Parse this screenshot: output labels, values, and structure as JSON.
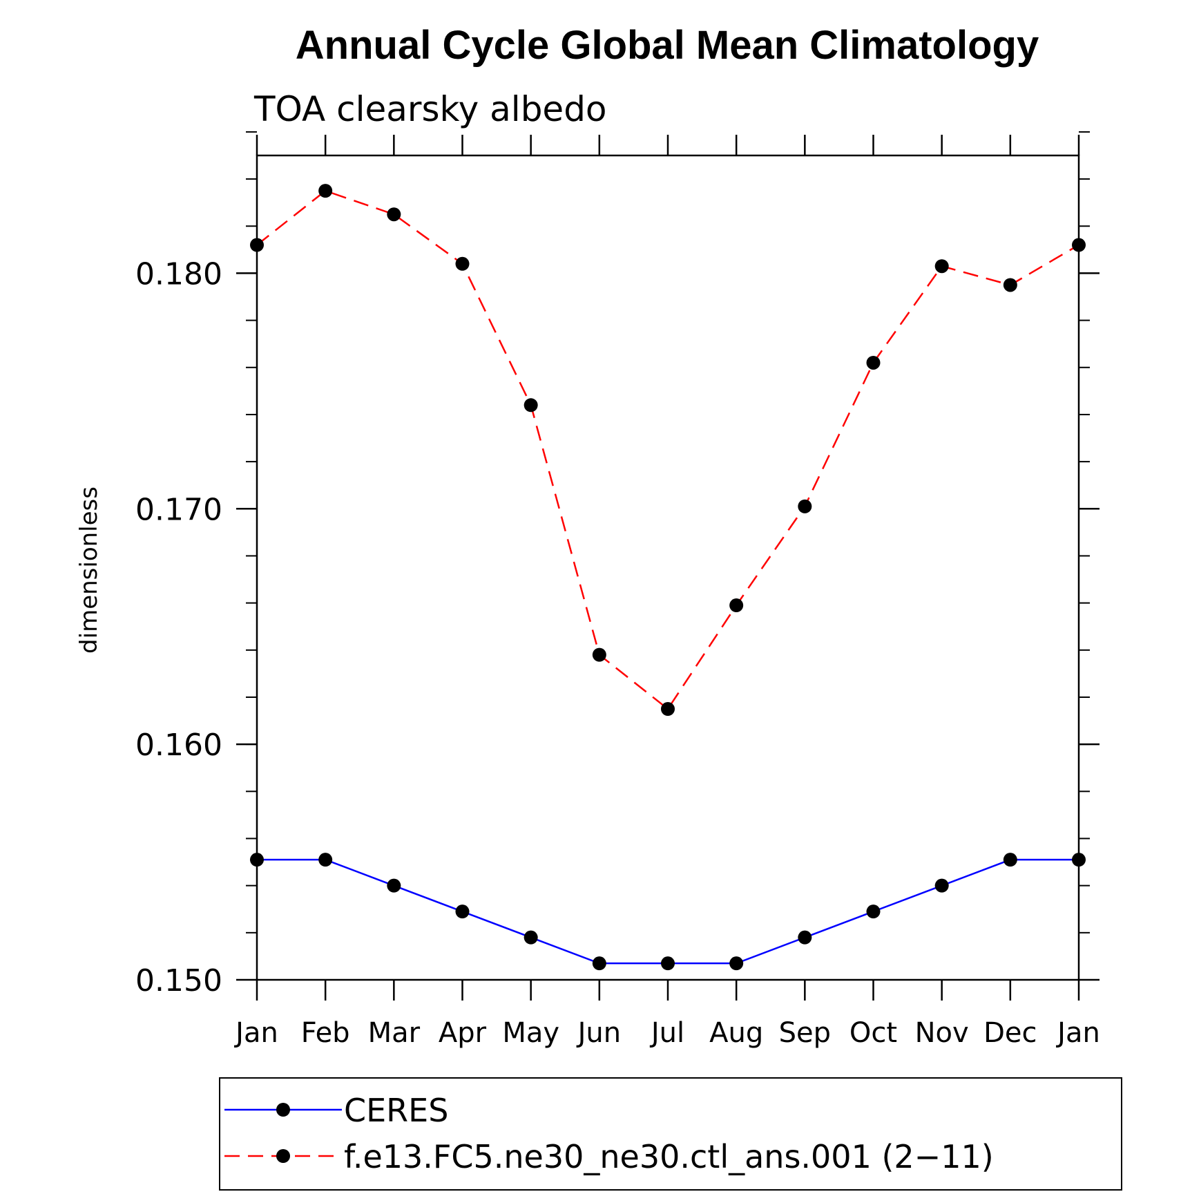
{
  "chart_data": {
    "type": "line",
    "title": "Annual Cycle Global Mean Climatology",
    "subtitle": "TOA clearsky albedo",
    "xlabel": "",
    "ylabel": "dimensionless",
    "categories": [
      "Jan",
      "Feb",
      "Mar",
      "Apr",
      "May",
      "Jun",
      "Jul",
      "Aug",
      "Sep",
      "Oct",
      "Nov",
      "Dec",
      "Jan"
    ],
    "ylim": [
      0.15,
      0.185
    ],
    "yticks": [
      0.15,
      0.16,
      0.17,
      0.18
    ],
    "ytick_labels": [
      "0.150",
      "0.160",
      "0.170",
      "0.180"
    ],
    "yminor_step": 0.002,
    "grid": false,
    "legend_position": "bottom",
    "series": [
      {
        "name": "CERES",
        "color": "#0000ff",
        "dash": "solid",
        "marker": "filled-circle",
        "values": [
          0.1551,
          0.1551,
          0.154,
          0.1529,
          0.1518,
          0.1507,
          0.1507,
          0.1507,
          0.1518,
          0.1529,
          0.154,
          0.1551,
          0.1551
        ]
      },
      {
        "name": "f.e13.FC5.ne30_ne30.ctl_ans.001 (2−11)",
        "color": "#ff0000",
        "dash": "dashed",
        "marker": "filled-circle",
        "values": [
          0.1812,
          0.1835,
          0.1825,
          0.1804,
          0.1744,
          0.1638,
          0.1615,
          0.1659,
          0.1701,
          0.1762,
          0.1803,
          0.1795,
          0.1812
        ]
      }
    ]
  }
}
